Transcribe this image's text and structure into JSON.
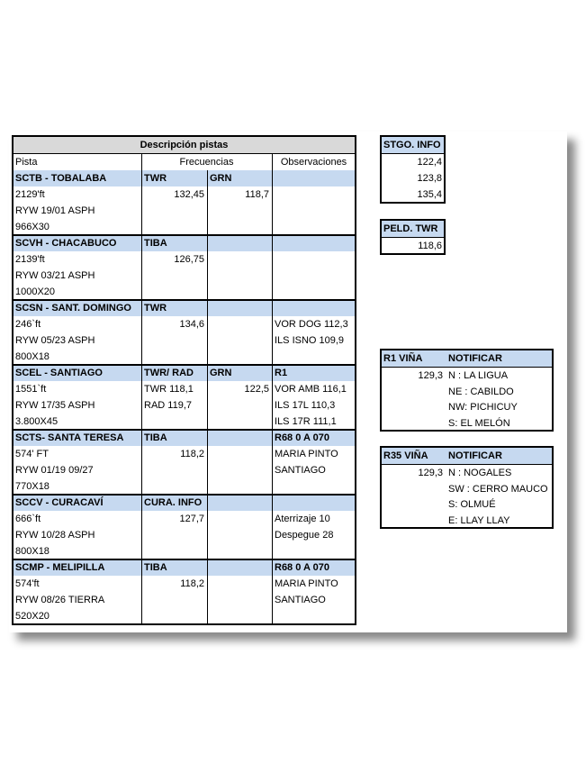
{
  "main_table": {
    "title": "Descripción pistas",
    "headers": {
      "pista": "Pista",
      "frecuencias": "Frecuencias",
      "observaciones": "Observaciones"
    },
    "sections": [
      {
        "header": {
          "pista": "SCTB - TOBALABA",
          "f1": "TWR",
          "f2": "GRN"
        },
        "rows": [
          {
            "pista": "2129'ft",
            "f1": "132,45",
            "f2": "118,7"
          },
          {
            "pista": "RYW 19/01 ASPH"
          },
          {
            "pista": "966X30"
          }
        ]
      },
      {
        "header": {
          "pista": "SCVH - CHACABUCO",
          "f1": "TIBA"
        },
        "rows": [
          {
            "pista": "2139'ft",
            "f1": "126,75"
          },
          {
            "pista": "RYW 03/21 ASPH"
          },
          {
            "pista": "1000X20"
          }
        ]
      },
      {
        "header": {
          "pista": "SCSN - SANT. DOMINGO",
          "f1": "TWR"
        },
        "rows": [
          {
            "pista": "246`ft",
            "f1": "134,6",
            "obs": "VOR DOG 112,3"
          },
          {
            "pista": "RYW 05/23 ASPH",
            "obs": "ILS ISNO 109,9"
          },
          {
            "pista": "800X18"
          }
        ]
      },
      {
        "header": {
          "pista": "SCEL - SANTIAGO",
          "f1": "TWR/ RAD",
          "f2": "GRN",
          "obs": "R1"
        },
        "rows": [
          {
            "pista": "1551`ft",
            "f1": "TWR 118,1",
            "f2": "122,5",
            "obs": "VOR AMB 116,1"
          },
          {
            "pista": "RYW 17/35 ASPH",
            "f1": "RAD 119,7",
            "obs": "ILS 17L 110,3"
          },
          {
            "pista": "3.800X45",
            "obs": "ILS 17R 111,1"
          }
        ]
      },
      {
        "header": {
          "pista": "SCTS- SANTA TERESA",
          "f1": "TIBA",
          "obs": "R68 0 A 070"
        },
        "rows": [
          {
            "pista": "574' FT",
            "f1": "118,2",
            "obs": "MARIA PINTO"
          },
          {
            "pista": "RYW 01/19 09/27",
            "obs": "SANTIAGO"
          },
          {
            "pista": "770X18"
          }
        ]
      },
      {
        "header": {
          "pista": "SCCV - CURACAVÍ",
          "f1": "CURA. INFO"
        },
        "rows": [
          {
            "pista": "666`ft",
            "f1": "127,7",
            "obs": "Aterrizaje 10"
          },
          {
            "pista": "RYW 10/28 ASPH",
            "obs": "Despegue 28"
          },
          {
            "pista": "800X18"
          }
        ]
      },
      {
        "header": {
          "pista": "SCMP - MELIPILLA",
          "f1": "TIBA",
          "obs": "R68 0 A 070"
        },
        "rows": [
          {
            "pista": "574'ft",
            "f1": "118,2",
            "obs": "MARIA PINTO"
          },
          {
            "pista": "RYW 08/26 TIERRA",
            "obs": "SANTIAGO"
          },
          {
            "pista": "520X20"
          }
        ]
      }
    ]
  },
  "stgo_info": {
    "title": "STGO. INFO",
    "values": [
      "122,4",
      "123,8",
      "135,4"
    ]
  },
  "peld_twr": {
    "title": "PELD. TWR",
    "values": [
      "118,6"
    ]
  },
  "r1_vina": {
    "title": "R1 VIÑA",
    "notify": "NOTIFICAR",
    "frequency": "129,3",
    "items": [
      "N : LA LIGUA",
      "NE : CABILDO",
      "NW: PICHICUY",
      "S: EL MELÓN"
    ]
  },
  "r35_vina": {
    "title": "R35 VIÑA",
    "notify": "NOTIFICAR",
    "frequency": "129,3",
    "items": [
      "N : NOGALES",
      "SW : CERRO MAUCO",
      "S: OLMUÉ",
      "E: LLAY LLAY"
    ]
  }
}
